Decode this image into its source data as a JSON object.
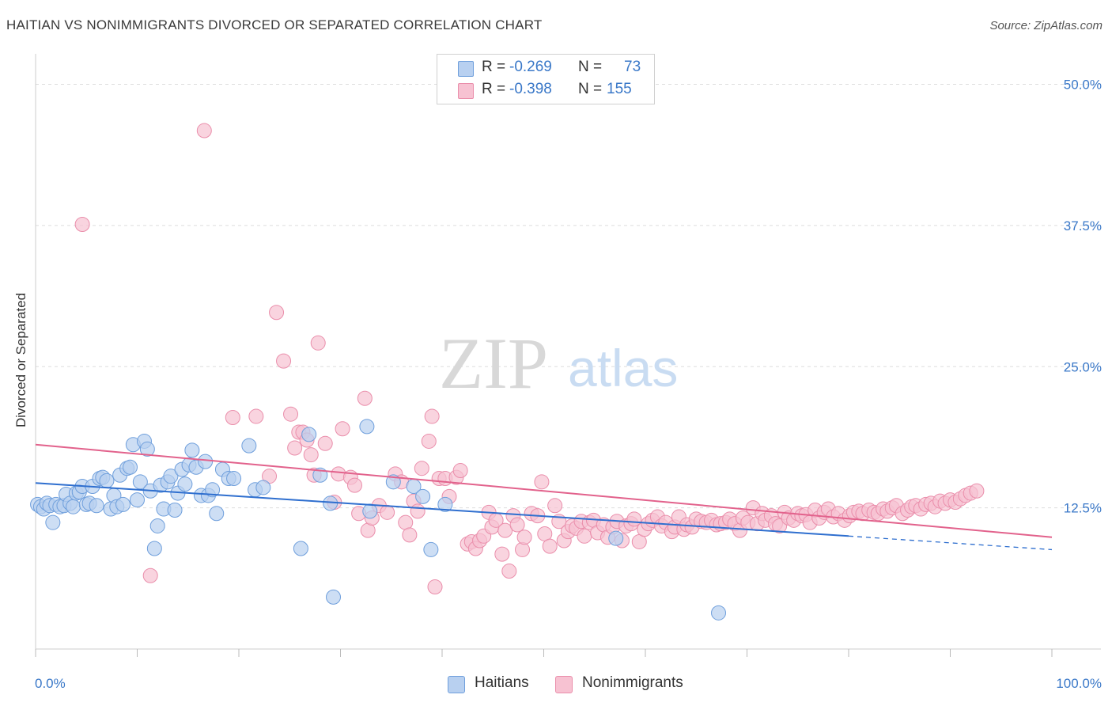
{
  "header": {
    "title": "HAITIAN VS NONIMMIGRANTS DIVORCED OR SEPARATED CORRELATION CHART",
    "source": "Source: ZipAtlas.com"
  },
  "legend": {
    "haitians": {
      "r_label": "R =",
      "r_value": "-0.269",
      "n_label": "N =",
      "n_value": "73"
    },
    "nonimmigrants": {
      "r_label": "R =",
      "r_value": "-0.398",
      "n_label": "N =",
      "n_value": "155"
    }
  },
  "bottom_legend": {
    "haitians": "Haitians",
    "nonimmigrants": "Nonimmigrants"
  },
  "watermark": {
    "zip": "ZIP",
    "atlas": "atlas"
  },
  "colors": {
    "haitians_fill": "#b8d0f0",
    "haitians_stroke": "#6f9fdc",
    "haitians_line": "#2f6fcf",
    "nonimmigrants_fill": "#f7c2d2",
    "nonimmigrants_stroke": "#ea8eab",
    "nonimmigrants_line": "#e2628c",
    "axis_text": "#3a78c8",
    "grid": "#dddddd"
  },
  "chart_data": {
    "type": "scatter",
    "title": "HAITIAN VS NONIMMIGRANTS DIVORCED OR SEPARATED CORRELATION CHART",
    "xlabel": "",
    "ylabel": "Divorced or Separated",
    "xlim": [
      0,
      100
    ],
    "ylim": [
      0,
      52
    ],
    "x_tick_labels": [
      "0.0%",
      "100.0%"
    ],
    "y_ticks": [
      12.5,
      25.0,
      37.5,
      50.0
    ],
    "y_tick_labels": [
      "12.5%",
      "25.0%",
      "37.5%",
      "50.0%"
    ],
    "grid": true,
    "legend_placement": "top-center",
    "series": [
      {
        "name": "Haitians",
        "r": -0.269,
        "n": 73,
        "trend": {
          "x0": 0,
          "y0": 14.7,
          "x1": 80,
          "y1": 10.0,
          "dashed_to_x": 100,
          "dashed_to_y": 8.8
        },
        "points": [
          [
            0.2,
            12.8
          ],
          [
            0.5,
            12.6
          ],
          [
            0.8,
            12.4
          ],
          [
            1.1,
            12.9
          ],
          [
            1.4,
            12.7
          ],
          [
            1.7,
            11.2
          ],
          [
            2.0,
            12.8
          ],
          [
            2.4,
            12.6
          ],
          [
            2.8,
            12.7
          ],
          [
            3.0,
            13.7
          ],
          [
            3.4,
            12.9
          ],
          [
            3.7,
            12.6
          ],
          [
            4.0,
            13.8
          ],
          [
            4.3,
            13.9
          ],
          [
            4.6,
            14.4
          ],
          [
            5.0,
            12.8
          ],
          [
            5.3,
            12.9
          ],
          [
            5.6,
            14.4
          ],
          [
            6.0,
            12.7
          ],
          [
            6.3,
            15.1
          ],
          [
            6.6,
            15.2
          ],
          [
            7.0,
            14.9
          ],
          [
            7.4,
            12.4
          ],
          [
            7.7,
            13.6
          ],
          [
            8.0,
            12.6
          ],
          [
            8.3,
            15.4
          ],
          [
            8.6,
            12.8
          ],
          [
            9.0,
            16.0
          ],
          [
            9.3,
            16.1
          ],
          [
            9.6,
            18.1
          ],
          [
            10.0,
            13.2
          ],
          [
            10.3,
            14.8
          ],
          [
            10.7,
            18.4
          ],
          [
            11.0,
            17.7
          ],
          [
            11.3,
            14.0
          ],
          [
            11.7,
            8.9
          ],
          [
            12.0,
            10.9
          ],
          [
            12.3,
            14.5
          ],
          [
            12.6,
            12.4
          ],
          [
            13.0,
            14.8
          ],
          [
            13.3,
            15.3
          ],
          [
            13.7,
            12.3
          ],
          [
            14.0,
            13.8
          ],
          [
            14.4,
            15.9
          ],
          [
            14.7,
            14.6
          ],
          [
            15.1,
            16.3
          ],
          [
            15.4,
            17.6
          ],
          [
            15.8,
            16.1
          ],
          [
            16.3,
            13.6
          ],
          [
            16.7,
            16.6
          ],
          [
            17.0,
            13.6
          ],
          [
            17.4,
            14.1
          ],
          [
            17.8,
            12.0
          ],
          [
            18.4,
            15.9
          ],
          [
            19.0,
            15.1
          ],
          [
            19.5,
            15.1
          ],
          [
            21.0,
            18.0
          ],
          [
            21.6,
            14.1
          ],
          [
            22.4,
            14.3
          ],
          [
            26.1,
            8.9
          ],
          [
            26.9,
            19.0
          ],
          [
            28.0,
            15.4
          ],
          [
            29.0,
            12.9
          ],
          [
            29.3,
            4.6
          ],
          [
            32.6,
            19.7
          ],
          [
            32.9,
            12.2
          ],
          [
            35.2,
            14.8
          ],
          [
            37.2,
            14.4
          ],
          [
            38.1,
            13.5
          ],
          [
            38.9,
            8.8
          ],
          [
            40.3,
            12.8
          ],
          [
            57.1,
            9.8
          ],
          [
            67.2,
            3.2
          ]
        ]
      },
      {
        "name": "Nonimmigrants",
        "r": -0.398,
        "n": 155,
        "trend": {
          "x0": 0,
          "y0": 18.1,
          "x1": 100,
          "y1": 9.9
        },
        "points": [
          [
            4.6,
            37.6
          ],
          [
            11.3,
            6.5
          ],
          [
            16.6,
            45.9
          ],
          [
            19.4,
            20.5
          ],
          [
            21.7,
            20.6
          ],
          [
            23.0,
            15.3
          ],
          [
            23.7,
            29.8
          ],
          [
            24.4,
            25.5
          ],
          [
            25.1,
            20.8
          ],
          [
            25.5,
            17.8
          ],
          [
            25.9,
            19.2
          ],
          [
            26.3,
            19.2
          ],
          [
            26.7,
            18.5
          ],
          [
            27.1,
            17.2
          ],
          [
            27.4,
            15.4
          ],
          [
            27.8,
            27.1
          ],
          [
            28.5,
            18.2
          ],
          [
            29.4,
            13.0
          ],
          [
            29.8,
            15.5
          ],
          [
            30.2,
            19.5
          ],
          [
            31.0,
            15.2
          ],
          [
            31.4,
            14.5
          ],
          [
            31.8,
            12.0
          ],
          [
            32.4,
            22.2
          ],
          [
            32.7,
            10.5
          ],
          [
            33.1,
            11.6
          ],
          [
            33.8,
            12.7
          ],
          [
            34.6,
            12.1
          ],
          [
            35.4,
            15.5
          ],
          [
            36.0,
            14.8
          ],
          [
            36.4,
            11.2
          ],
          [
            36.8,
            10.1
          ],
          [
            37.2,
            13.1
          ],
          [
            37.6,
            12.2
          ],
          [
            38.0,
            16.0
          ],
          [
            38.7,
            18.4
          ],
          [
            39.0,
            20.6
          ],
          [
            39.3,
            5.5
          ],
          [
            39.7,
            15.1
          ],
          [
            40.3,
            15.1
          ],
          [
            40.7,
            13.5
          ],
          [
            41.4,
            15.2
          ],
          [
            41.8,
            15.8
          ],
          [
            42.5,
            9.3
          ],
          [
            42.9,
            9.5
          ],
          [
            43.3,
            8.9
          ],
          [
            43.7,
            9.6
          ],
          [
            44.1,
            10.0
          ],
          [
            44.6,
            12.1
          ],
          [
            44.9,
            10.8
          ],
          [
            45.3,
            11.4
          ],
          [
            45.9,
            8.4
          ],
          [
            46.2,
            10.5
          ],
          [
            46.6,
            6.9
          ],
          [
            47.0,
            11.8
          ],
          [
            47.4,
            11.0
          ],
          [
            47.9,
            8.8
          ],
          [
            48.1,
            9.9
          ],
          [
            48.8,
            12.0
          ],
          [
            49.4,
            11.8
          ],
          [
            49.8,
            14.8
          ],
          [
            50.1,
            10.2
          ],
          [
            50.6,
            9.1
          ],
          [
            51.1,
            12.7
          ],
          [
            51.5,
            11.3
          ],
          [
            52.0,
            9.6
          ],
          [
            52.4,
            10.4
          ],
          [
            52.8,
            10.9
          ],
          [
            53.2,
            10.7
          ],
          [
            53.7,
            11.3
          ],
          [
            54.0,
            10.0
          ],
          [
            54.5,
            11.2
          ],
          [
            54.9,
            11.4
          ],
          [
            55.3,
            10.3
          ],
          [
            55.9,
            11.0
          ],
          [
            56.3,
            9.9
          ],
          [
            56.8,
            10.8
          ],
          [
            57.2,
            11.3
          ],
          [
            57.7,
            9.6
          ],
          [
            58.1,
            10.9
          ],
          [
            58.6,
            11.1
          ],
          [
            58.9,
            11.5
          ],
          [
            59.4,
            9.5
          ],
          [
            59.9,
            10.6
          ],
          [
            60.3,
            11.1
          ],
          [
            60.7,
            11.4
          ],
          [
            61.2,
            11.7
          ],
          [
            61.6,
            10.9
          ],
          [
            62.0,
            11.2
          ],
          [
            62.6,
            10.4
          ],
          [
            62.9,
            10.8
          ],
          [
            63.3,
            11.7
          ],
          [
            63.8,
            10.6
          ],
          [
            64.1,
            11.0
          ],
          [
            64.6,
            10.8
          ],
          [
            65.0,
            11.5
          ],
          [
            65.5,
            11.3
          ],
          [
            66.0,
            11.2
          ],
          [
            66.5,
            11.4
          ],
          [
            67.0,
            11.0
          ],
          [
            67.4,
            11.1
          ],
          [
            67.9,
            11.2
          ],
          [
            68.3,
            11.5
          ],
          [
            68.8,
            11.1
          ],
          [
            69.3,
            10.5
          ],
          [
            69.6,
            11.6
          ],
          [
            70.1,
            11.2
          ],
          [
            70.6,
            12.5
          ],
          [
            71.0,
            11.1
          ],
          [
            71.5,
            12.0
          ],
          [
            71.8,
            11.4
          ],
          [
            72.4,
            11.8
          ],
          [
            72.8,
            11.1
          ],
          [
            73.2,
            10.9
          ],
          [
            73.7,
            12.1
          ],
          [
            74.1,
            11.6
          ],
          [
            74.6,
            11.4
          ],
          [
            75.0,
            12.0
          ],
          [
            75.4,
            11.8
          ],
          [
            75.8,
            11.9
          ],
          [
            76.2,
            11.2
          ],
          [
            76.7,
            12.3
          ],
          [
            77.1,
            11.6
          ],
          [
            77.6,
            12.1
          ],
          [
            78.0,
            12.4
          ],
          [
            78.5,
            11.7
          ],
          [
            79.0,
            12.0
          ],
          [
            79.6,
            11.4
          ],
          [
            80.1,
            11.8
          ],
          [
            80.5,
            12.1
          ],
          [
            81.0,
            12.2
          ],
          [
            81.4,
            12.0
          ],
          [
            82.0,
            12.3
          ],
          [
            82.5,
            12.1
          ],
          [
            82.9,
            12.0
          ],
          [
            83.4,
            12.4
          ],
          [
            83.8,
            12.2
          ],
          [
            84.3,
            12.5
          ],
          [
            84.7,
            12.7
          ],
          [
            85.3,
            12.0
          ],
          [
            85.8,
            12.3
          ],
          [
            86.2,
            12.6
          ],
          [
            86.6,
            12.7
          ],
          [
            87.1,
            12.4
          ],
          [
            87.6,
            12.8
          ],
          [
            88.1,
            12.9
          ],
          [
            88.5,
            12.6
          ],
          [
            89.0,
            13.1
          ],
          [
            89.5,
            12.9
          ],
          [
            90.0,
            13.2
          ],
          [
            90.5,
            13.0
          ],
          [
            91.0,
            13.3
          ],
          [
            91.5,
            13.6
          ],
          [
            92.0,
            13.8
          ],
          [
            92.6,
            14.0
          ]
        ]
      }
    ]
  }
}
